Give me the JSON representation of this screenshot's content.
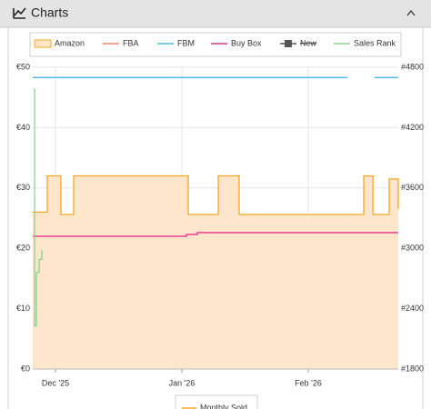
{
  "header": {
    "title": "Charts"
  },
  "chart_data": {
    "type": "line",
    "step": true,
    "grid": true,
    "xlim": [
      -0.18,
      2.712
    ],
    "xticks": [
      {
        "value": 0,
        "label": "Dec '25"
      },
      {
        "value": 1,
        "label": "Jan '26"
      },
      {
        "value": 2,
        "label": "Feb '26"
      }
    ],
    "ylim": [
      0,
      50
    ],
    "yticks": [
      {
        "value": 0,
        "label": "€0"
      },
      {
        "value": 10,
        "label": "€10"
      },
      {
        "value": 20,
        "label": "€20"
      },
      {
        "value": 30,
        "label": "€30"
      },
      {
        "value": 40,
        "label": "€40"
      },
      {
        "value": 50,
        "label": "€50"
      }
    ],
    "y2lim": [
      1800,
      4800
    ],
    "y2ticks": [
      {
        "value": 1800,
        "label": "#1800"
      },
      {
        "value": 2400,
        "label": "#2400"
      },
      {
        "value": 3000,
        "label": "#3000"
      },
      {
        "value": 3600,
        "label": "#3600"
      },
      {
        "value": 4200,
        "label": "#4200"
      },
      {
        "value": 4800,
        "label": "#4800"
      }
    ],
    "series": [
      {
        "name": "Amazon",
        "color": "#f5a623",
        "fill": "#fde6cc",
        "area": true,
        "x": [
          -0.18,
          -0.065,
          0.043,
          0.144,
          1.05,
          1.288,
          1.453,
          2.439,
          2.511,
          2.64,
          2.712
        ],
        "values": [
          26,
          32,
          25.6,
          32,
          25.6,
          32,
          25.6,
          32,
          25.6,
          31.5,
          26.5
        ]
      },
      {
        "name": "FBA",
        "color": "#f4866b",
        "x": [],
        "values": []
      },
      {
        "name": "FBM",
        "color": "#4ab8e8",
        "x": [
          -0.18,
          2.31,
          2.37,
          2.525,
          2.712
        ],
        "values": [
          48.3,
          48.3,
          null,
          48.3,
          48.3
        ]
      },
      {
        "name": "Buy Box",
        "color": "#e8308c",
        "x": [
          -0.18,
          1.036,
          1.122,
          2.712
        ],
        "values": [
          22,
          22.3,
          22.6,
          22.6
        ]
      },
      {
        "name": "New",
        "color": "#555555",
        "visible": false,
        "x": [],
        "values": []
      },
      {
        "name": "Sales Rank",
        "color": "#8fd18f",
        "axis": "y2",
        "x": [
          -0.173,
          -0.165,
          -0.151,
          -0.129,
          -0.108
        ],
        "values": [
          4580,
          2230,
          2760,
          2890,
          2980
        ]
      }
    ],
    "secondary_legend": [
      {
        "name": "Monthly Sold",
        "color": "#f5a623"
      }
    ]
  }
}
